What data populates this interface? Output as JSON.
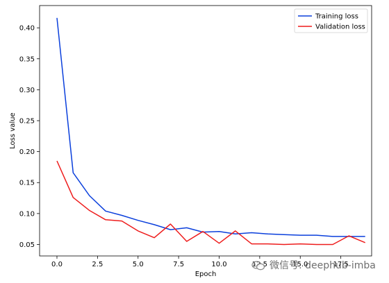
{
  "chart_data": {
    "type": "line",
    "title": "",
    "xlabel": "Epoch",
    "ylabel": "Loss value",
    "xlim": [
      -1.07,
      19.4
    ],
    "ylim": [
      0.0315,
      0.436
    ],
    "xticks": [
      0.0,
      2.5,
      5.0,
      7.5,
      10.0,
      12.5,
      15.0,
      17.5
    ],
    "xtick_labels": [
      "0.0",
      "2.5",
      "5.0",
      "7.5",
      "10.0",
      "12.5",
      "15.0",
      "17.5"
    ],
    "yticks": [
      0.05,
      0.1,
      0.15,
      0.2,
      0.25,
      0.3,
      0.35,
      0.4
    ],
    "ytick_labels": [
      "0.05",
      "0.10",
      "0.15",
      "0.20",
      "0.25",
      "0.30",
      "0.35",
      "0.40"
    ],
    "grid": false,
    "legend_position": "top-right",
    "x": [
      0,
      1,
      2,
      3,
      4,
      5,
      6,
      7,
      8,
      9,
      10,
      11,
      12,
      13,
      14,
      15,
      16,
      17,
      18,
      19
    ],
    "series": [
      {
        "name": "Training loss",
        "color": "#0a3fdc",
        "values": [
          0.416,
          0.166,
          0.129,
          0.104,
          0.097,
          0.089,
          0.082,
          0.074,
          0.077,
          0.07,
          0.071,
          0.067,
          0.069,
          0.067,
          0.066,
          0.065,
          0.065,
          0.063,
          0.063,
          0.063
        ]
      },
      {
        "name": "Validation loss",
        "color": "#ee1c1c",
        "values": [
          0.185,
          0.126,
          0.105,
          0.09,
          0.088,
          0.072,
          0.061,
          0.083,
          0.055,
          0.071,
          0.052,
          0.072,
          0.051,
          0.051,
          0.05,
          0.051,
          0.05,
          0.05,
          0.064,
          0.053
        ]
      }
    ]
  },
  "watermark": {
    "text": "微信号: deephub-imba",
    "icon": "wechat-icon"
  }
}
